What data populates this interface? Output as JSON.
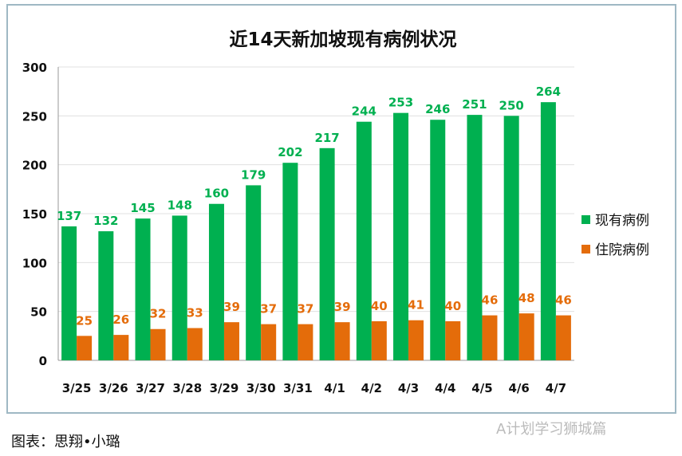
{
  "chart_data": {
    "type": "bar",
    "title": "近14天新加坡现有病例状况",
    "categories": [
      "3/25",
      "3/26",
      "3/27",
      "3/28",
      "3/29",
      "3/30",
      "3/31",
      "4/1",
      "4/2",
      "4/3",
      "4/4",
      "4/5",
      "4/6",
      "4/7"
    ],
    "series": [
      {
        "name": "现有病例",
        "color": "#00b050",
        "values": [
          137,
          132,
          145,
          148,
          160,
          179,
          202,
          217,
          244,
          253,
          246,
          251,
          250,
          264
        ]
      },
      {
        "name": "住院病例",
        "color": "#e46c0a",
        "values": [
          25,
          26,
          32,
          33,
          39,
          37,
          37,
          39,
          40,
          41,
          40,
          46,
          48,
          46
        ]
      }
    ],
    "ylim": [
      0,
      300
    ],
    "yticks": [
      0,
      50,
      100,
      150,
      200,
      250,
      300
    ],
    "grid": true,
    "legend": "right",
    "xlabel": "",
    "ylabel": ""
  },
  "caption": "图表：思翔•小璐",
  "watermark": "A计划学习狮城篇"
}
